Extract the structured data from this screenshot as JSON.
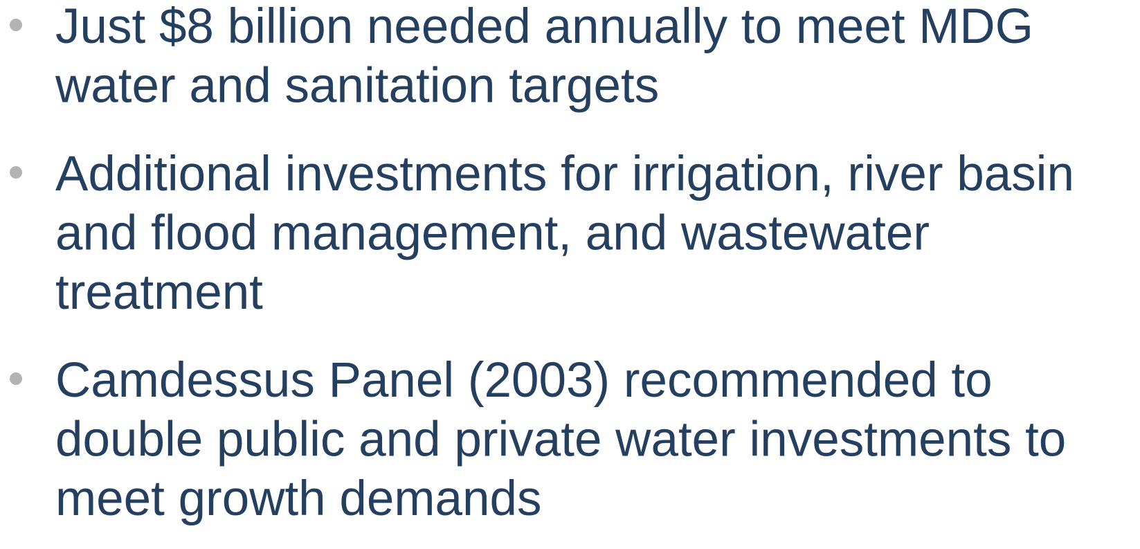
{
  "bullets": [
    {
      "lines": [
        "Just $8 billion needed annually to meet MDG",
        "water and sanitation targets"
      ]
    },
    {
      "lines": [
        "Additional investments for irrigation, river basin",
        "and flood management, and wastewater",
        "treatment"
      ]
    },
    {
      "lines": [
        "Camdessus Panel (2003) recommended to",
        "double public and private water investments to",
        "meet growth demands"
      ]
    }
  ]
}
